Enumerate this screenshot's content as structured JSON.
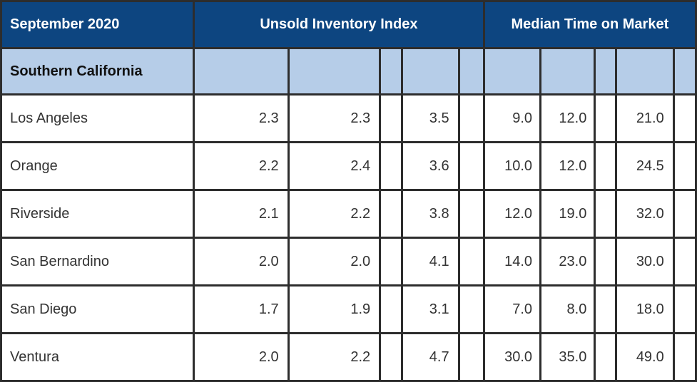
{
  "header": {
    "period": "September 2020",
    "group1": "Unsold Inventory Index",
    "group2": "Median Time on Market"
  },
  "region": {
    "label": "Southern California"
  },
  "rows": [
    {
      "name": "Los Angeles",
      "uii": [
        "2.3",
        "2.3",
        "3.5"
      ],
      "mtm": [
        "9.0",
        "12.0",
        "21.0"
      ]
    },
    {
      "name": "Orange",
      "uii": [
        "2.2",
        "2.4",
        "3.6"
      ],
      "mtm": [
        "10.0",
        "12.0",
        "24.5"
      ]
    },
    {
      "name": "Riverside",
      "uii": [
        "2.1",
        "2.2",
        "3.8"
      ],
      "mtm": [
        "12.0",
        "19.0",
        "32.0"
      ]
    },
    {
      "name": "San Bernardino",
      "uii": [
        "2.0",
        "2.0",
        "4.1"
      ],
      "mtm": [
        "14.0",
        "23.0",
        "30.0"
      ]
    },
    {
      "name": "San Diego",
      "uii": [
        "1.7",
        "1.9",
        "3.1"
      ],
      "mtm": [
        "7.0",
        "8.0",
        "18.0"
      ]
    },
    {
      "name": "Ventura",
      "uii": [
        "2.0",
        "2.2",
        "4.7"
      ],
      "mtm": [
        "30.0",
        "35.0",
        "49.0"
      ]
    }
  ],
  "colors": {
    "header_bg": "#0d4580",
    "region_bg": "#b6cde8",
    "grid": "#2d2d2d"
  }
}
